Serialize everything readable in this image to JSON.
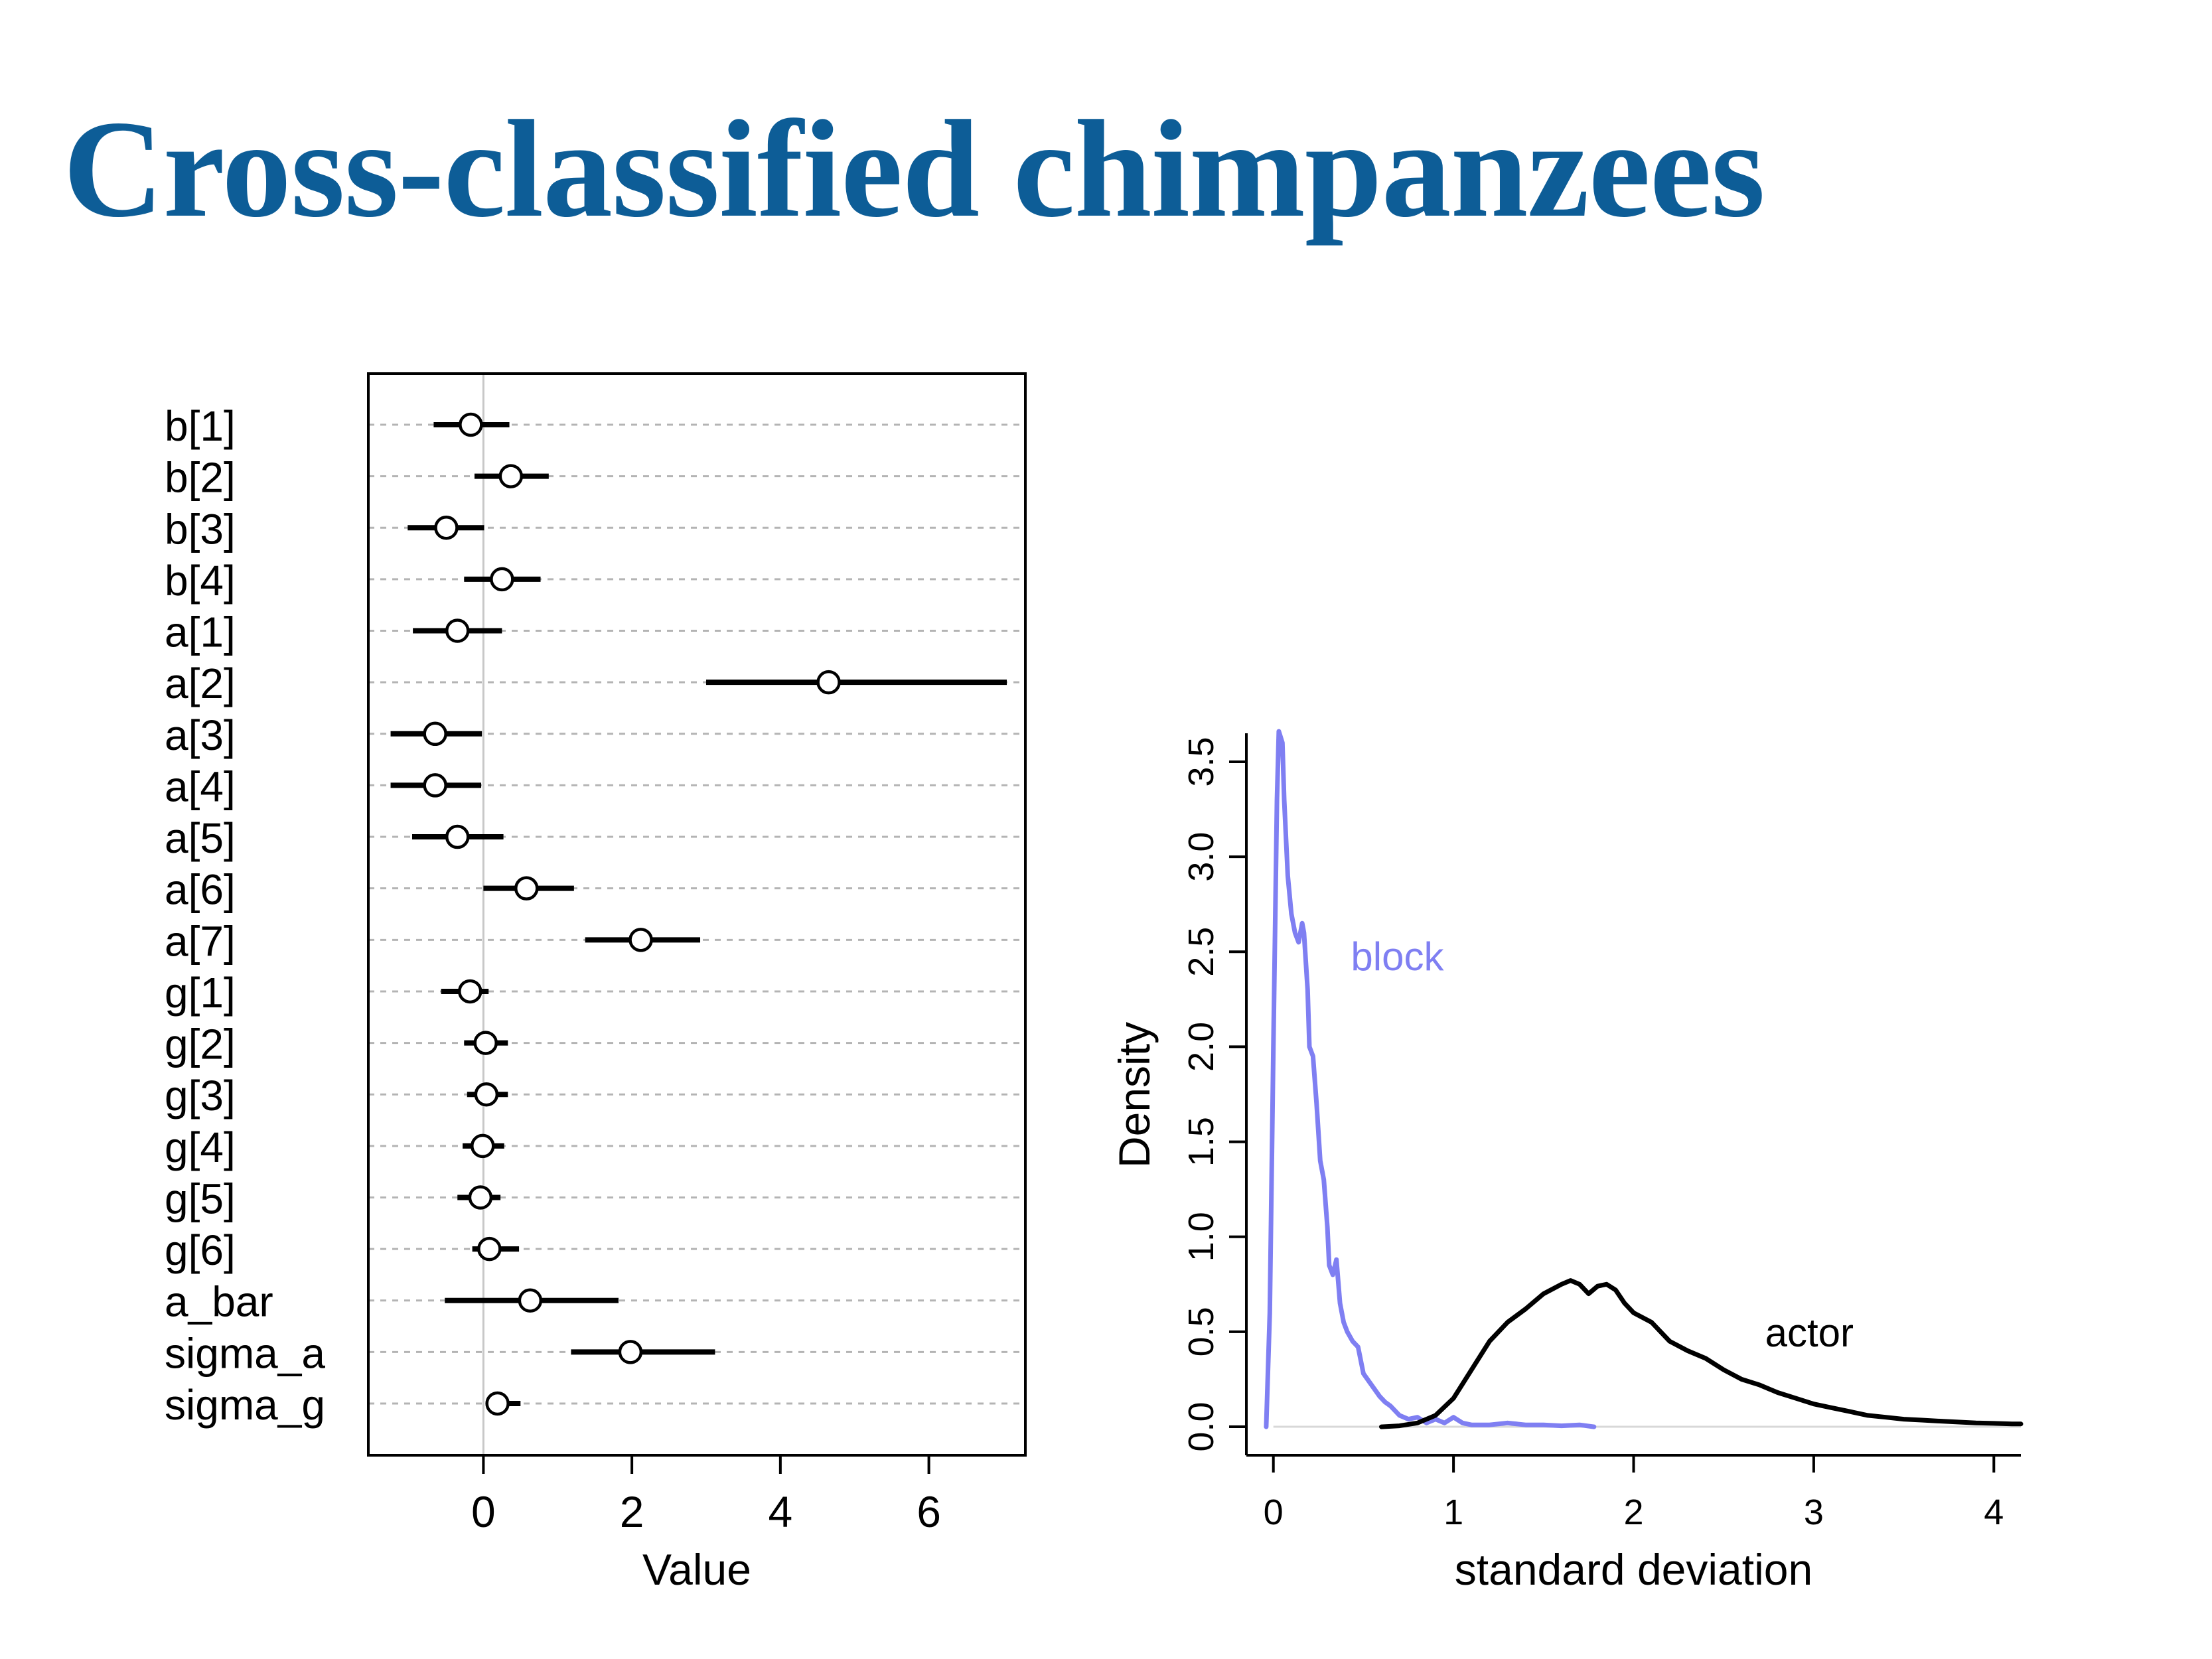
{
  "slide": {
    "title": "Cross-classified chimpanzees"
  },
  "chart_data": [
    {
      "type": "scatter",
      "title": "",
      "xlabel": "Value",
      "ylabel": "",
      "xlim": [
        -1.55,
        7.3
      ],
      "xticks": [
        0,
        2,
        4,
        6
      ],
      "grid": true,
      "parameters": [
        {
          "label": "b[1]",
          "mean": -0.17,
          "lo": -0.67,
          "hi": 0.35
        },
        {
          "label": "b[2]",
          "mean": 0.37,
          "lo": -0.12,
          "hi": 0.88
        },
        {
          "label": "b[3]",
          "mean": -0.5,
          "lo": -1.02,
          "hi": 0.01
        },
        {
          "label": "b[4]",
          "mean": 0.25,
          "lo": -0.26,
          "hi": 0.77
        },
        {
          "label": "a[1]",
          "mean": -0.35,
          "lo": -0.95,
          "hi": 0.25
        },
        {
          "label": "a[2]",
          "mean": 4.65,
          "lo": 3.0,
          "hi": 7.05
        },
        {
          "label": "a[3]",
          "mean": -0.65,
          "lo": -1.25,
          "hi": -0.02
        },
        {
          "label": "a[4]",
          "mean": -0.65,
          "lo": -1.25,
          "hi": -0.03
        },
        {
          "label": "a[5]",
          "mean": -0.35,
          "lo": -0.96,
          "hi": 0.27
        },
        {
          "label": "a[6]",
          "mean": 0.58,
          "lo": 0.0,
          "hi": 1.22
        },
        {
          "label": "a[7]",
          "mean": 2.12,
          "lo": 1.37,
          "hi": 2.92
        },
        {
          "label": "g[1]",
          "mean": -0.18,
          "lo": -0.57,
          "hi": 0.07
        },
        {
          "label": "g[2]",
          "mean": 0.03,
          "lo": -0.26,
          "hi": 0.33
        },
        {
          "label": "g[3]",
          "mean": 0.04,
          "lo": -0.22,
          "hi": 0.33
        },
        {
          "label": "g[4]",
          "mean": -0.01,
          "lo": -0.28,
          "hi": 0.28
        },
        {
          "label": "g[5]",
          "mean": -0.04,
          "lo": -0.35,
          "hi": 0.23
        },
        {
          "label": "g[6]",
          "mean": 0.08,
          "lo": -0.15,
          "hi": 0.48
        },
        {
          "label": "a_bar",
          "mean": 0.63,
          "lo": -0.52,
          "hi": 1.82
        },
        {
          "label": "sigma_a",
          "mean": 1.98,
          "lo": 1.18,
          "hi": 3.12
        },
        {
          "label": "sigma_g",
          "mean": 0.19,
          "lo": 0.04,
          "hi": 0.5
        }
      ]
    },
    {
      "type": "line",
      "title": "",
      "xlabel": "standard deviation",
      "ylabel": "Density",
      "xlim": [
        -0.15,
        4.15
      ],
      "ylim": [
        -0.15,
        3.65
      ],
      "xticks": [
        0,
        1,
        2,
        3,
        4
      ],
      "yticks": [
        0.0,
        0.5,
        1.0,
        1.5,
        2.0,
        2.5,
        3.0,
        3.5
      ],
      "ytick_labels": [
        "0.0",
        "0.5",
        "1.0",
        "1.5",
        "2.0",
        "2.5",
        "3.0",
        "3.5"
      ],
      "grid": false,
      "series": [
        {
          "name": "block",
          "color": "#7f7ff2",
          "x": [
            -0.04,
            -0.02,
            0.0,
            0.02,
            0.03,
            0.05,
            0.06,
            0.08,
            0.1,
            0.12,
            0.14,
            0.16,
            0.17,
            0.19,
            0.2,
            0.22,
            0.24,
            0.26,
            0.28,
            0.3,
            0.31,
            0.33,
            0.35,
            0.37,
            0.39,
            0.41,
            0.44,
            0.47,
            0.5,
            0.53,
            0.56,
            0.59,
            0.62,
            0.65,
            0.7,
            0.75,
            0.8,
            0.85,
            0.9,
            0.95,
            1.0,
            1.05,
            1.1,
            1.2,
            1.3,
            1.4,
            1.5,
            1.6,
            1.7,
            1.78
          ],
          "y": [
            0.0,
            0.6,
            2.0,
            3.3,
            3.66,
            3.6,
            3.3,
            2.9,
            2.7,
            2.6,
            2.55,
            2.65,
            2.6,
            2.3,
            2.0,
            1.95,
            1.7,
            1.4,
            1.3,
            1.05,
            0.85,
            0.8,
            0.88,
            0.65,
            0.55,
            0.5,
            0.45,
            0.42,
            0.28,
            0.24,
            0.2,
            0.16,
            0.13,
            0.11,
            0.06,
            0.04,
            0.05,
            0.02,
            0.04,
            0.02,
            0.05,
            0.02,
            0.01,
            0.01,
            0.02,
            0.01,
            0.01,
            0.005,
            0.01,
            0.0
          ]
        },
        {
          "name": "actor",
          "color": "#000000",
          "x": [
            0.6,
            0.7,
            0.8,
            0.9,
            1.0,
            1.1,
            1.2,
            1.3,
            1.4,
            1.5,
            1.6,
            1.65,
            1.7,
            1.75,
            1.8,
            1.85,
            1.9,
            1.95,
            2.0,
            2.1,
            2.2,
            2.3,
            2.4,
            2.5,
            2.6,
            2.7,
            2.8,
            2.9,
            3.0,
            3.1,
            3.2,
            3.3,
            3.4,
            3.5,
            3.6,
            3.7,
            3.8,
            3.9,
            4.0,
            4.1,
            4.15
          ],
          "y": [
            0.0,
            0.005,
            0.02,
            0.06,
            0.15,
            0.3,
            0.45,
            0.55,
            0.62,
            0.7,
            0.75,
            0.77,
            0.75,
            0.7,
            0.74,
            0.75,
            0.72,
            0.65,
            0.6,
            0.55,
            0.45,
            0.4,
            0.36,
            0.3,
            0.25,
            0.22,
            0.18,
            0.15,
            0.12,
            0.1,
            0.08,
            0.06,
            0.05,
            0.04,
            0.035,
            0.03,
            0.025,
            0.02,
            0.018,
            0.015,
            0.015
          ]
        }
      ],
      "annotations": [
        {
          "text": "block",
          "x": 0.43,
          "y": 2.48,
          "color": "#7f7ff2"
        },
        {
          "text": "actor",
          "x": 2.73,
          "y": 0.5,
          "color": "#000000"
        }
      ]
    }
  ]
}
